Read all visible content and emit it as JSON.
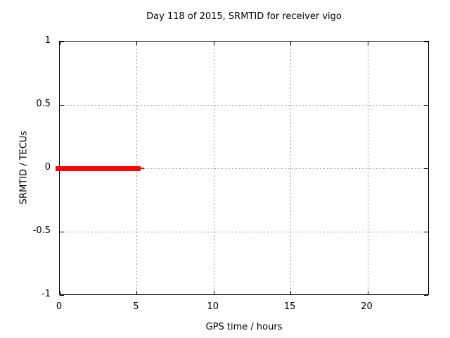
{
  "page": {
    "background_color": "#ffffff"
  },
  "chart_data": {
    "type": "line",
    "title": "Day 118 of 2015, SRMTID for receiver vigo",
    "xlabel": "GPS time / hours",
    "ylabel": "SRMTID / TECUs",
    "xlim": [
      0,
      24
    ],
    "ylim": [
      -1,
      1
    ],
    "xticks": [
      0,
      5,
      10,
      15,
      20
    ],
    "yticks": [
      1,
      0.5,
      0,
      -0.5,
      -1
    ],
    "grid": true,
    "legend": "none",
    "colors": {
      "border": "#000000",
      "grid": "#9b9b9b",
      "text": "#000000"
    },
    "series": [
      {
        "name": "SRMTID",
        "color": "#ff0000",
        "segments": [
          {
            "x_start": 0,
            "x_end": 5.15,
            "y": 0,
            "style": "thick"
          },
          {
            "x_start": 5.15,
            "x_end": 5.5,
            "y": 0,
            "style": "thin"
          }
        ],
        "note": "flat at 0 TECUs from 0 h to about 5.2 h; no data for the rest of the day"
      }
    ]
  }
}
